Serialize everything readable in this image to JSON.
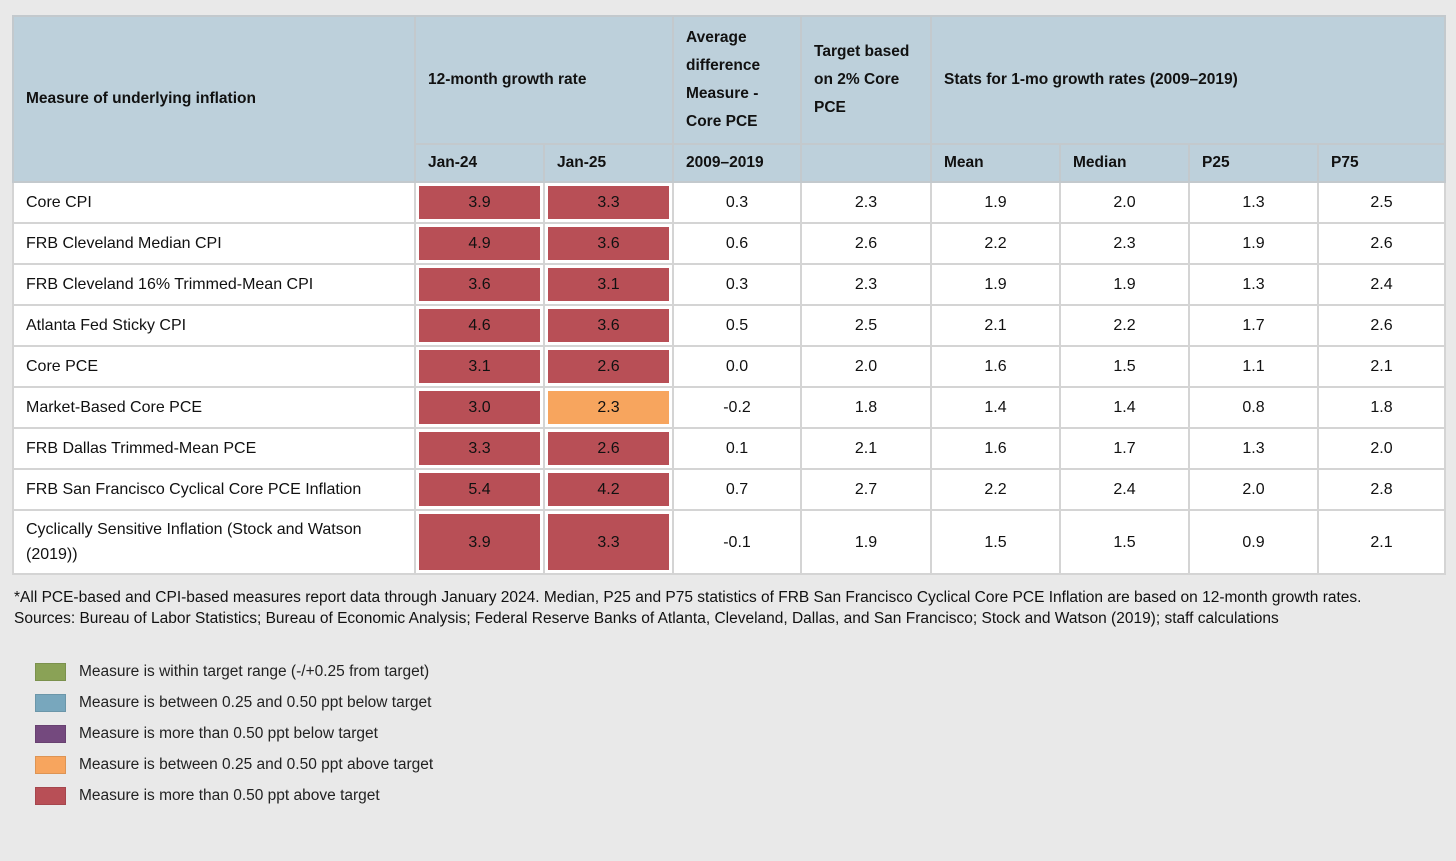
{
  "colors": {
    "page_bg": "#e9e9e9",
    "header_bg": "#bdd0db",
    "within": "#8aa256",
    "below_025_050": "#78a7bd",
    "below_050": "#74497e",
    "above_025_050": "#f7a55e",
    "above_050": "#b84f56"
  },
  "header": {
    "measure": "Measure of underlying inflation",
    "growth": "12-month growth rate",
    "avg_diff": "Average difference Measure - Core PCE",
    "target": "Target based on 2% Core PCE",
    "stats": "Stats for 1-mo growth rates (2009–2019)",
    "sub": {
      "jan24": "Jan-24",
      "jan25": "Jan-25",
      "period": "2009–2019",
      "target_blank": "",
      "mean": "Mean",
      "median": "Median",
      "p25": "P25",
      "p75": "P75"
    }
  },
  "chart_data": {
    "type": "table",
    "columns": [
      "Measure of underlying inflation",
      "Jan-24",
      "Jan-25",
      "Average difference Measure - Core PCE 2009–2019",
      "Target based on 2% Core PCE",
      "Mean",
      "Median",
      "P25",
      "P75"
    ],
    "rows": [
      {
        "measure": "Core CPI",
        "jan24": "3.9",
        "jan24_status": "above_050",
        "jan25": "3.3",
        "jan25_status": "above_050",
        "avg_diff": "0.3",
        "target": "2.3",
        "mean": "1.9",
        "median": "2.0",
        "p25": "1.3",
        "p75": "2.5"
      },
      {
        "measure": "FRB Cleveland Median CPI",
        "jan24": "4.9",
        "jan24_status": "above_050",
        "jan25": "3.6",
        "jan25_status": "above_050",
        "avg_diff": "0.6",
        "target": "2.6",
        "mean": "2.2",
        "median": "2.3",
        "p25": "1.9",
        "p75": "2.6"
      },
      {
        "measure": "FRB Cleveland 16% Trimmed-Mean CPI",
        "jan24": "3.6",
        "jan24_status": "above_050",
        "jan25": "3.1",
        "jan25_status": "above_050",
        "avg_diff": "0.3",
        "target": "2.3",
        "mean": "1.9",
        "median": "1.9",
        "p25": "1.3",
        "p75": "2.4"
      },
      {
        "measure": "Atlanta Fed Sticky CPI",
        "jan24": "4.6",
        "jan24_status": "above_050",
        "jan25": "3.6",
        "jan25_status": "above_050",
        "avg_diff": "0.5",
        "target": "2.5",
        "mean": "2.1",
        "median": "2.2",
        "p25": "1.7",
        "p75": "2.6"
      },
      {
        "measure": "Core PCE",
        "jan24": "3.1",
        "jan24_status": "above_050",
        "jan25": "2.6",
        "jan25_status": "above_050",
        "avg_diff": "0.0",
        "target": "2.0",
        "mean": "1.6",
        "median": "1.5",
        "p25": "1.1",
        "p75": "2.1"
      },
      {
        "measure": "Market-Based Core PCE",
        "jan24": "3.0",
        "jan24_status": "above_050",
        "jan25": "2.3",
        "jan25_status": "above_025_050",
        "avg_diff": "-0.2",
        "target": "1.8",
        "mean": "1.4",
        "median": "1.4",
        "p25": "0.8",
        "p75": "1.8"
      },
      {
        "measure": "FRB Dallas Trimmed-Mean PCE",
        "jan24": "3.3",
        "jan24_status": "above_050",
        "jan25": "2.6",
        "jan25_status": "above_050",
        "avg_diff": "0.1",
        "target": "2.1",
        "mean": "1.6",
        "median": "1.7",
        "p25": "1.3",
        "p75": "2.0"
      },
      {
        "measure": "FRB San Francisco Cyclical Core PCE Inflation",
        "jan24": "5.4",
        "jan24_status": "above_050",
        "jan25": "4.2",
        "jan25_status": "above_050",
        "avg_diff": "0.7",
        "target": "2.7",
        "mean": "2.2",
        "median": "2.4",
        "p25": "2.0",
        "p75": "2.8"
      },
      {
        "measure": "Cyclically Sensitive Inflation (Stock and Watson (2019))",
        "jan24": "3.9",
        "jan24_status": "above_050",
        "jan25": "3.3",
        "jan25_status": "above_050",
        "avg_diff": "-0.1",
        "target": "1.9",
        "mean": "1.5",
        "median": "1.5",
        "p25": "0.9",
        "p75": "2.1"
      }
    ]
  },
  "footnotes": {
    "line1": "*All PCE-based and CPI-based measures report data through January 2024. Median, P25 and P75 statistics of FRB San Francisco Cyclical Core PCE Inflation are based on 12-month growth rates.",
    "line2": "Sources: Bureau of Labor Statistics; Bureau of Economic Analysis; Federal Reserve Banks of Atlanta, Cleveland, Dallas, and San Francisco; Stock and Watson (2019); staff calculations"
  },
  "legend": {
    "items": [
      {
        "status": "within",
        "label": "Measure is within target range (-/+0.25 from target)"
      },
      {
        "status": "below_025_050",
        "label": "Measure is between 0.25 and 0.50 ppt below target"
      },
      {
        "status": "below_050",
        "label": "Measure is more than 0.50 ppt below target"
      },
      {
        "status": "above_025_050",
        "label": "Measure is between 0.25 and 0.50 ppt above target"
      },
      {
        "status": "above_050",
        "label": "Measure is more than 0.50 ppt above target"
      }
    ]
  }
}
